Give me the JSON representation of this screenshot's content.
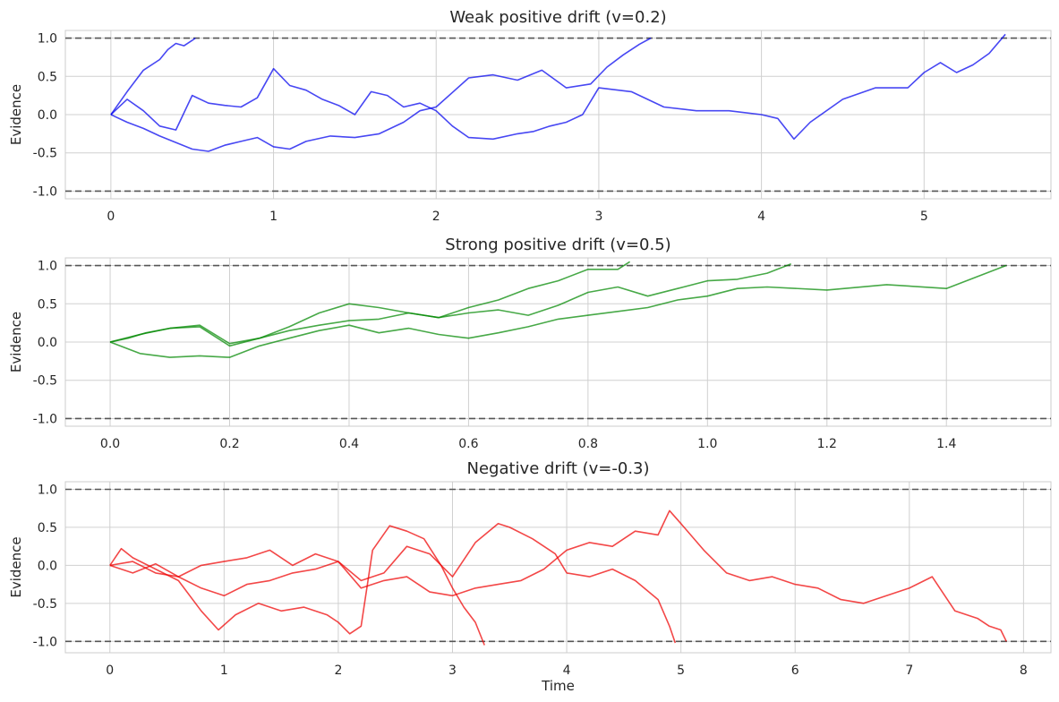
{
  "chart_data": [
    {
      "type": "line",
      "title": "Weak positive drift (v=0.2)",
      "xlabel": "",
      "ylabel": "Evidence",
      "xlim": [
        -0.28,
        5.78
      ],
      "ylim": [
        -1.1,
        1.1
      ],
      "xticks": [
        0,
        1,
        2,
        3,
        4,
        5
      ],
      "yticks": [
        -1.0,
        -0.5,
        0.0,
        0.5,
        1.0
      ],
      "grid": true,
      "color": "#0000ee",
      "thresholds": [
        1.0,
        -1.0
      ],
      "series": [
        {
          "x": [
            0,
            0.1,
            0.2,
            0.3,
            0.35,
            0.4,
            0.45,
            0.5,
            0.52
          ],
          "y": [
            0,
            0.3,
            0.58,
            0.72,
            0.85,
            0.93,
            0.9,
            0.97,
            1.0
          ]
        },
        {
          "x": [
            0,
            0.1,
            0.2,
            0.3,
            0.5,
            0.6,
            0.7,
            0.8,
            0.9,
            1.0,
            1.1,
            1.2,
            1.35,
            1.5,
            1.65,
            1.8,
            1.9,
            2.0,
            2.2,
            2.35,
            2.5,
            2.65,
            2.8,
            2.95,
            3.05,
            3.15,
            3.25,
            3.32
          ],
          "y": [
            0,
            -0.1,
            -0.18,
            -0.28,
            -0.45,
            -0.48,
            -0.4,
            -0.35,
            -0.3,
            -0.42,
            -0.45,
            -0.35,
            -0.28,
            -0.3,
            -0.25,
            -0.1,
            0.05,
            0.1,
            0.48,
            0.52,
            0.45,
            0.58,
            0.35,
            0.4,
            0.62,
            0.78,
            0.92,
            1.0
          ]
        },
        {
          "x": [
            0,
            0.1,
            0.2,
            0.3,
            0.4,
            0.5,
            0.6,
            0.7,
            0.8,
            0.9,
            1.0,
            1.1,
            1.2,
            1.3,
            1.4,
            1.5,
            1.6,
            1.7,
            1.8,
            1.9,
            2.0,
            2.1,
            2.2,
            2.35,
            2.5,
            2.6,
            2.7,
            2.8,
            2.9,
            3.0,
            3.2,
            3.4,
            3.6,
            3.8,
            4.0,
            4.1,
            4.2,
            4.3,
            4.5,
            4.7,
            4.9,
            5.0,
            5.1,
            5.2,
            5.3,
            5.4,
            5.5
          ],
          "y": [
            0,
            0.2,
            0.05,
            -0.15,
            -0.2,
            0.25,
            0.15,
            0.12,
            0.1,
            0.22,
            0.6,
            0.38,
            0.32,
            0.2,
            0.12,
            0.0,
            0.3,
            0.25,
            0.1,
            0.15,
            0.05,
            -0.15,
            -0.3,
            -0.32,
            -0.25,
            -0.22,
            -0.15,
            -0.1,
            0.0,
            0.35,
            0.3,
            0.1,
            0.05,
            0.05,
            0.0,
            -0.05,
            -0.32,
            -0.1,
            0.2,
            0.35,
            0.35,
            0.55,
            0.68,
            0.55,
            0.65,
            0.8,
            1.05
          ]
        }
      ]
    },
    {
      "type": "line",
      "title": "Strong positive drift (v=0.5)",
      "xlabel": "",
      "ylabel": "Evidence",
      "xlim": [
        -0.075,
        1.575
      ],
      "ylim": [
        -1.1,
        1.1
      ],
      "xticks": [
        0.0,
        0.2,
        0.4,
        0.6,
        0.8,
        1.0,
        1.2,
        1.4
      ],
      "yticks": [
        -1.0,
        -0.5,
        0.0,
        0.5,
        1.0
      ],
      "grid": true,
      "color": "#008800",
      "thresholds": [
        1.0,
        -1.0
      ],
      "series": [
        {
          "x": [
            0,
            0.03,
            0.06,
            0.1,
            0.15,
            0.2,
            0.25,
            0.3,
            0.35,
            0.4,
            0.45,
            0.5,
            0.55,
            0.6,
            0.65,
            0.7,
            0.75,
            0.8,
            0.85,
            0.87
          ],
          "y": [
            0,
            0.05,
            0.12,
            0.18,
            0.2,
            -0.05,
            0.05,
            0.2,
            0.38,
            0.5,
            0.45,
            0.38,
            0.32,
            0.45,
            0.55,
            0.7,
            0.8,
            0.95,
            0.95,
            1.05
          ]
        },
        {
          "x": [
            0,
            0.05,
            0.1,
            0.15,
            0.2,
            0.25,
            0.3,
            0.35,
            0.4,
            0.45,
            0.5,
            0.55,
            0.6,
            0.65,
            0.7,
            0.75,
            0.8,
            0.85,
            0.9,
            0.95,
            1.0,
            1.05,
            1.1,
            1.14
          ],
          "y": [
            0,
            0.1,
            0.18,
            0.22,
            -0.02,
            0.05,
            0.15,
            0.22,
            0.28,
            0.3,
            0.38,
            0.32,
            0.38,
            0.42,
            0.35,
            0.48,
            0.65,
            0.72,
            0.6,
            0.7,
            0.8,
            0.82,
            0.9,
            1.02
          ]
        },
        {
          "x": [
            0,
            0.05,
            0.1,
            0.15,
            0.2,
            0.25,
            0.3,
            0.35,
            0.4,
            0.45,
            0.5,
            0.55,
            0.6,
            0.65,
            0.7,
            0.75,
            0.8,
            0.85,
            0.9,
            0.95,
            1.0,
            1.05,
            1.1,
            1.2,
            1.3,
            1.4,
            1.45,
            1.5
          ],
          "y": [
            0,
            -0.15,
            -0.2,
            -0.18,
            -0.2,
            -0.05,
            0.05,
            0.15,
            0.22,
            0.12,
            0.18,
            0.1,
            0.05,
            0.12,
            0.2,
            0.3,
            0.35,
            0.4,
            0.45,
            0.55,
            0.6,
            0.7,
            0.72,
            0.68,
            0.75,
            0.7,
            0.85,
            1.0
          ]
        }
      ]
    },
    {
      "type": "line",
      "title": "Negative drift (v=-0.3)",
      "xlabel": "Time",
      "ylabel": "Evidence",
      "xlim": [
        -0.39,
        8.24
      ],
      "ylim": [
        -1.15,
        1.1
      ],
      "xticks": [
        0,
        1,
        2,
        3,
        4,
        5,
        6,
        7,
        8
      ],
      "yticks": [
        -1.0,
        -0.5,
        0.0,
        0.5,
        1.0
      ],
      "grid": true,
      "color": "#ee0000",
      "thresholds": [
        1.0,
        -1.0
      ],
      "series": [
        {
          "x": [
            0,
            0.1,
            0.2,
            0.4,
            0.6,
            0.8,
            0.95,
            1.1,
            1.3,
            1.5,
            1.7,
            1.9,
            2.0,
            2.1,
            2.2,
            2.3,
            2.45,
            2.6,
            2.75,
            2.9,
            3.0,
            3.1,
            3.2,
            3.28
          ],
          "y": [
            0,
            0.22,
            0.1,
            -0.05,
            -0.2,
            -0.6,
            -0.85,
            -0.65,
            -0.5,
            -0.6,
            -0.55,
            -0.65,
            -0.75,
            -0.9,
            -0.8,
            0.2,
            0.52,
            0.45,
            0.35,
            0.0,
            -0.3,
            -0.55,
            -0.75,
            -1.05
          ]
        },
        {
          "x": [
            0,
            0.2,
            0.4,
            0.6,
            0.8,
            1.0,
            1.2,
            1.4,
            1.6,
            1.8,
            2.0,
            2.2,
            2.4,
            2.6,
            2.8,
            3.0,
            3.2,
            3.4,
            3.5,
            3.7,
            3.9,
            4.0,
            4.2,
            4.4,
            4.6,
            4.8,
            4.9,
            4.95
          ],
          "y": [
            0,
            -0.1,
            0.02,
            -0.15,
            -0.3,
            -0.4,
            -0.25,
            -0.2,
            -0.1,
            -0.05,
            0.05,
            -0.2,
            -0.1,
            0.25,
            0.15,
            -0.15,
            0.3,
            0.55,
            0.5,
            0.35,
            0.15,
            -0.1,
            -0.15,
            -0.05,
            -0.2,
            -0.45,
            -0.8,
            -1.02
          ]
        },
        {
          "x": [
            0,
            0.2,
            0.4,
            0.6,
            0.8,
            1.0,
            1.2,
            1.4,
            1.6,
            1.8,
            2.0,
            2.2,
            2.4,
            2.6,
            2.8,
            3.0,
            3.2,
            3.4,
            3.6,
            3.8,
            4.0,
            4.2,
            4.4,
            4.6,
            4.8,
            4.9,
            5.0,
            5.2,
            5.4,
            5.6,
            5.8,
            6.0,
            6.2,
            6.4,
            6.6,
            6.8,
            7.0,
            7.2,
            7.4,
            7.6,
            7.7,
            7.8,
            7.85
          ],
          "y": [
            0,
            0.05,
            -0.1,
            -0.15,
            0.0,
            0.05,
            0.1,
            0.2,
            0.0,
            0.15,
            0.05,
            -0.3,
            -0.2,
            -0.15,
            -0.35,
            -0.4,
            -0.3,
            -0.25,
            -0.2,
            -0.05,
            0.2,
            0.3,
            0.25,
            0.45,
            0.4,
            0.72,
            0.55,
            0.2,
            -0.1,
            -0.2,
            -0.15,
            -0.25,
            -0.3,
            -0.45,
            -0.5,
            -0.4,
            -0.3,
            -0.15,
            -0.6,
            -0.7,
            -0.8,
            -0.85,
            -1.0
          ]
        }
      ]
    }
  ]
}
